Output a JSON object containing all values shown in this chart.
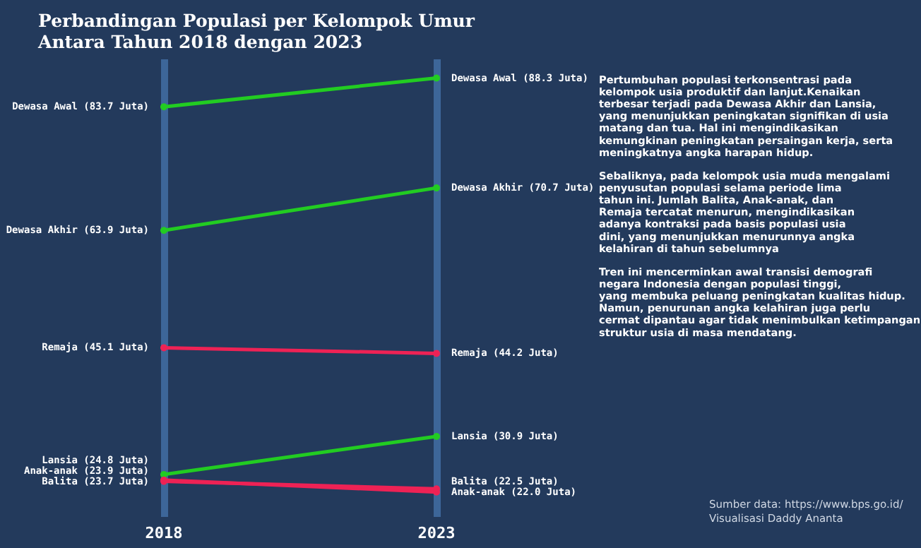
{
  "chart_data": {
    "type": "line",
    "title": "Perbandingan Populasi per Kelompok Umur\nAntara Tahun 2018 dengan 2023",
    "categories": [
      "2018",
      "2023"
    ],
    "series": [
      {
        "color": "#22cc22",
        "values": [
          83.7,
          88.3
        ],
        "value_labels": [
          "Dewasa Awal (83.7 Juta)",
          "Dewasa Awal (88.3 Juta)"
        ]
      },
      {
        "color": "#22cc22",
        "values": [
          63.9,
          70.7
        ],
        "value_labels": [
          "Dewasa Akhir (63.9 Juta)",
          "Dewasa Akhir (70.7 Juta)"
        ]
      },
      {
        "color": "#ee2255",
        "values": [
          45.1,
          44.2
        ],
        "value_labels": [
          "Remaja (45.1 Juta)",
          "Remaja (44.2 Juta)"
        ]
      },
      {
        "color": "#22cc22",
        "values": [
          24.8,
          30.9
        ],
        "value_labels": [
          "Lansia (24.8 Juta)",
          "Lansia (30.9 Juta)"
        ]
      },
      {
        "color": "#ee2255",
        "values": [
          23.9,
          22.0
        ],
        "value_labels": [
          "Anak-anak (23.9 Juta)",
          "Anak-anak (22.0 Juta)"
        ]
      },
      {
        "color": "#ee2255",
        "values": [
          23.7,
          22.5
        ],
        "value_labels": [
          "Balita (23.7 Juta)",
          "Balita (22.5 Juta)"
        ]
      }
    ],
    "annotations": [
      "Pertumbuhan populasi terkonsentrasi pada\nkelompok usia produktif dan lanjut.Kenaikan\nterbesar terjadi pada Dewasa Akhir dan Lansia,\nyang menunjukkan peningkatan signifikan di usia\nmatang dan tua. Hal ini mengindikasikan\nkemungkinan peningkatan persaingan kerja, serta\nmeningkatnya angka harapan hidup.",
      "Sebaliknya, pada kelompok usia muda mengalami\npenyusutan populasi selama periode lima\ntahun ini. Jumlah Balita, Anak-anak, dan\nRemaja tercatat menurun, mengindikasikan\nadanya kontraksi pada basis populasi usia\ndini, yang menunjukkan menurunnya angka\nkelahiran di tahun sebelumnya",
      "Tren ini mencerminkan awal transisi demografi\nnegara Indonesia dengan populasi tinggi,\nyang membuka peluang peningkatan kualitas hidup.\nNamun, penurunan angka kelahiran juga perlu\ncermat dipantau agar tidak menimbulkan ketimpangan\nstruktur usia di masa mendatang.",
      "Sumber data: https://www.bps.go.id/\nVisualisasi Daddy Ananta"
    ],
    "grid": "x",
    "marker": "circle",
    "line_style": "solid"
  }
}
